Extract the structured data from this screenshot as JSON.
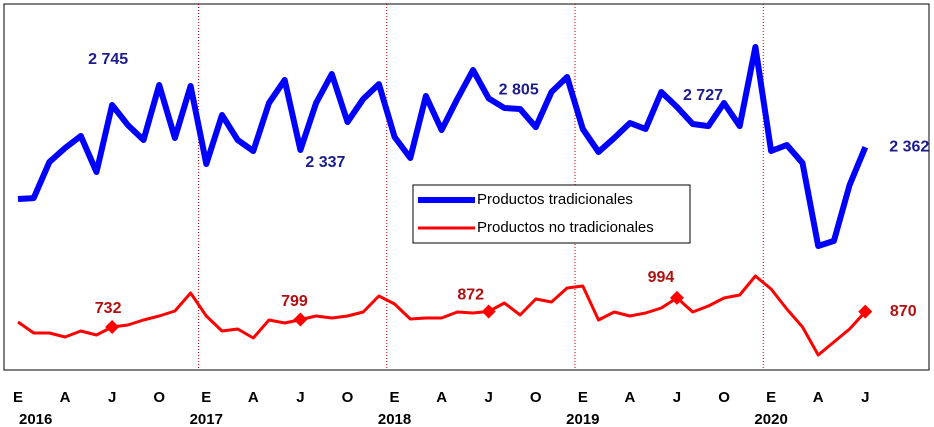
{
  "chart_data": {
    "type": "line",
    "categories": [
      "E",
      null,
      null,
      "A",
      null,
      null,
      "J",
      null,
      null,
      "O",
      null,
      null,
      "E",
      null,
      null,
      "A",
      null,
      null,
      "J",
      null,
      null,
      "O",
      null,
      null,
      "E",
      null,
      null,
      "A",
      null,
      null,
      "J",
      null,
      null,
      "O",
      null,
      null,
      "E",
      null,
      null,
      "A",
      null,
      null,
      "J",
      null,
      null,
      "O",
      null,
      null,
      "E",
      null,
      null,
      "A",
      null,
      null,
      "J"
    ],
    "years": [
      "2016",
      "2017",
      "2018",
      "2019",
      "2020"
    ],
    "legend": "center",
    "series": [
      {
        "name": "Productos tradicionales",
        "color": "#0000ff",
        "values": [
          1892,
          1901,
          2228,
          2355,
          2464,
          2137,
          2745,
          2564,
          2428,
          2926,
          2446,
          2917,
          2210,
          2654,
          2428,
          2328,
          2763,
          2972,
          2337,
          2763,
          3026,
          2591,
          2799,
          2935,
          2455,
          2264,
          2827,
          2518,
          2799,
          3062,
          2805,
          2718,
          2709,
          2545,
          2863,
          2999,
          2527,
          2319,
          2446,
          2582,
          2527,
          2863,
          2727,
          2573,
          2554,
          2763,
          2554,
          3271,
          2328,
          2382,
          2219,
          1466,
          1512,
          2019,
          2362
        ],
        "value_labels": [
          null,
          null,
          null,
          null,
          null,
          null,
          "2 745",
          null,
          null,
          null,
          null,
          null,
          null,
          null,
          null,
          null,
          null,
          null,
          "2 337",
          null,
          null,
          null,
          null,
          null,
          null,
          null,
          null,
          null,
          null,
          null,
          "2 805",
          null,
          null,
          null,
          null,
          null,
          null,
          null,
          null,
          null,
          null,
          null,
          "2 727",
          null,
          null,
          null,
          null,
          null,
          null,
          null,
          null,
          null,
          null,
          null,
          "2 362"
        ]
      },
      {
        "name": "Productos no tradicionales",
        "color": "#ff0000",
        "values": [
          777,
          678,
          678,
          642,
          696,
          660,
          732,
          750,
          795,
          831,
          876,
          1038,
          831,
          696,
          714,
          633,
          795,
          768,
          799,
          831,
          813,
          831,
          867,
          1011,
          939,
          804,
          813,
          813,
          867,
          858,
          872,
          948,
          840,
          984,
          957,
          1083,
          1101,
          795,
          867,
          831,
          858,
          903,
          994,
          867,
          921,
          993,
          1020,
          1191,
          1074,
          894,
          732,
          480,
          597,
          714,
          870
        ],
        "value_labels": [
          null,
          null,
          null,
          null,
          null,
          null,
          "732",
          null,
          null,
          null,
          null,
          null,
          null,
          null,
          null,
          null,
          null,
          null,
          "799",
          null,
          null,
          null,
          null,
          null,
          null,
          null,
          null,
          null,
          null,
          null,
          "872",
          null,
          null,
          null,
          null,
          null,
          null,
          null,
          null,
          null,
          null,
          null,
          "994",
          null,
          null,
          null,
          null,
          null,
          null,
          null,
          null,
          null,
          null,
          null,
          "870"
        ]
      }
    ]
  }
}
